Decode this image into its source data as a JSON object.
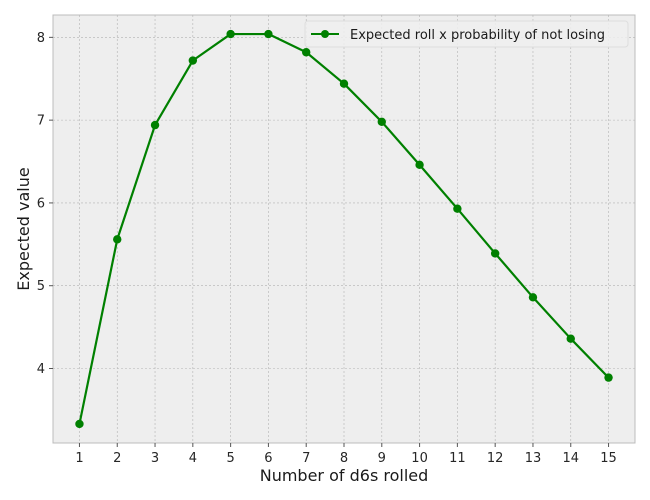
{
  "chart_data": {
    "type": "line",
    "title": "",
    "xlabel": "Number of d6s rolled",
    "ylabel": "Expected value",
    "x": [
      1,
      2,
      3,
      4,
      5,
      6,
      7,
      8,
      9,
      10,
      11,
      12,
      13,
      14,
      15
    ],
    "xticks": [
      1,
      2,
      3,
      4,
      5,
      6,
      7,
      8,
      9,
      10,
      11,
      12,
      13,
      14,
      15
    ],
    "yticks": [
      4,
      5,
      6,
      7,
      8
    ],
    "xlim": [
      0.3,
      15.7
    ],
    "ylim": [
      3.1,
      8.27
    ],
    "grid": true,
    "legend_position": "top-right",
    "series": [
      {
        "name": "Expected roll x probability of not losing",
        "color": "#008000",
        "marker": "circle",
        "values": [
          3.33,
          5.56,
          6.94,
          7.72,
          8.04,
          8.04,
          7.82,
          7.44,
          6.98,
          6.46,
          5.93,
          5.39,
          4.86,
          4.36,
          3.89
        ]
      }
    ]
  }
}
